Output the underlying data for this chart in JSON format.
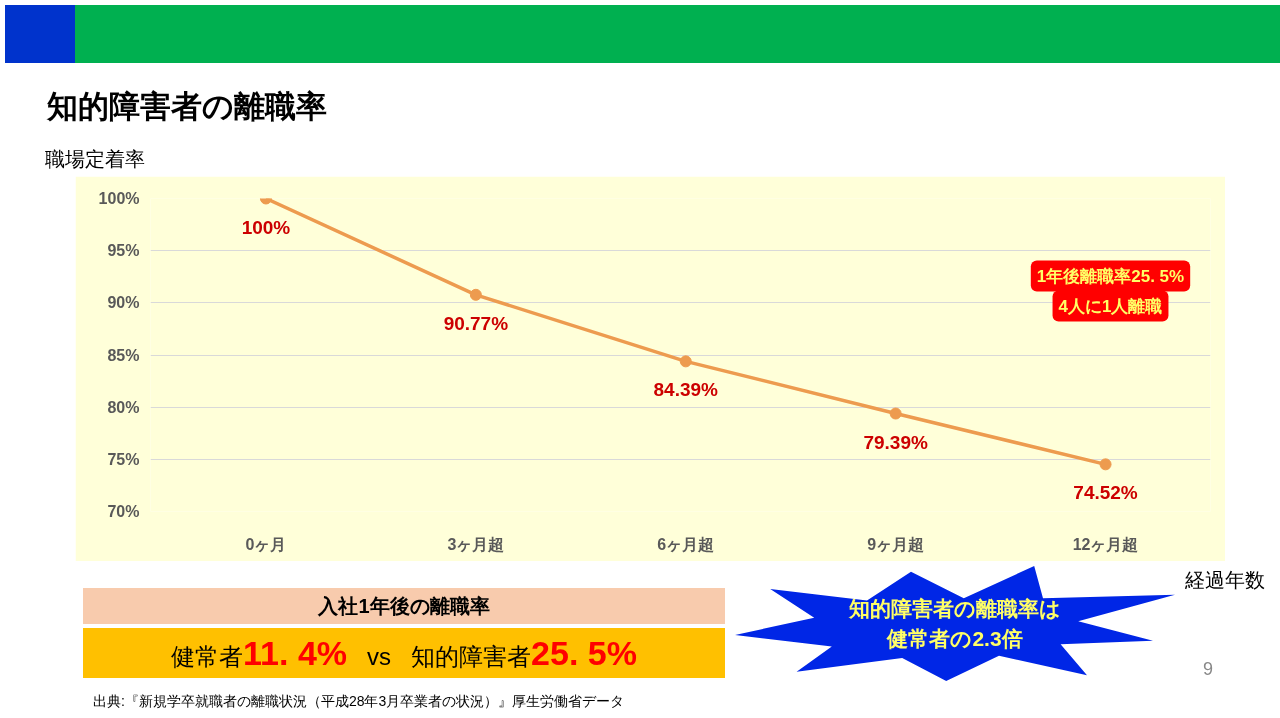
{
  "chart_data": {
    "type": "line",
    "title": "知的障害者の離職率",
    "ylabel": "職場定着率",
    "xlabel": "経過年数",
    "categories": [
      "0ヶ月",
      "3ヶ月超",
      "6ヶ月超",
      "9ヶ月超",
      "12ヶ月超"
    ],
    "series": [
      {
        "color": "#ed9b4f",
        "values": [
          100,
          90.77,
          84.39,
          79.39,
          74.52
        ],
        "value_labels": [
          "100%",
          "90.77%",
          "84.39%",
          "79.39%",
          "74.52%"
        ]
      }
    ],
    "ylim": [
      70,
      100
    ],
    "yticks": [
      {
        "value": 70,
        "label": "70%"
      },
      {
        "value": 75,
        "label": "75%"
      },
      {
        "value": 80,
        "label": "80%"
      },
      {
        "value": 85,
        "label": "85%"
      },
      {
        "value": 90,
        "label": "90%"
      },
      {
        "value": 95,
        "label": "95%"
      },
      {
        "value": 100,
        "label": "100%"
      }
    ],
    "grid": "y",
    "marker": "circle",
    "line_style": "solid",
    "annotations": [
      "1年後離職率25. 5%",
      "4人に1人離職",
      "入社1年後の離職率",
      "健常者",
      "11. 4%",
      "vs",
      "知的障害者",
      "25. 5%",
      "知的障害者の離職率は",
      "健常者の2.3倍",
      "出典:『新規学卒就職者の離職状況（平成28年3月卒業者の状況）』厚生労働省データ",
      "9"
    ]
  }
}
